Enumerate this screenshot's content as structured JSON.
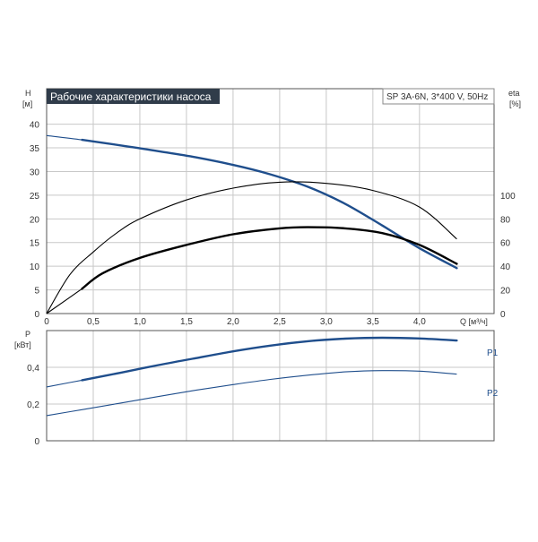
{
  "chart_title": "Рабочие характеристики насоса",
  "model_label": "SP 3A-6N, 3*400 V, 50Hz",
  "colors": {
    "blue": "#1f4e8c",
    "black": "#000000",
    "grid": "#c8c8c8",
    "frame": "#555555",
    "title_bg": "#303c4a"
  },
  "chart_data": [
    {
      "type": "line",
      "panel": "top",
      "ylabel_left": "H",
      "ylabel_left_unit": "[м]",
      "ylabel_right": "eta",
      "ylabel_right_unit": "[%]",
      "xlabel": "Q [м³/ч]",
      "x_ticks": [
        "0",
        "0,5",
        "1,0",
        "1,5",
        "2,0",
        "2,5",
        "3,0",
        "3,5",
        "4,0"
      ],
      "x_tick_values": [
        0,
        0.5,
        1.0,
        1.5,
        2.0,
        2.5,
        3.0,
        3.5,
        4.0
      ],
      "xlim": [
        0,
        4.8
      ],
      "y_left_ticks": [
        "0",
        "5",
        "10",
        "15",
        "20",
        "25",
        "30",
        "35",
        "40"
      ],
      "y_left_tick_values": [
        0,
        5,
        10,
        15,
        20,
        25,
        30,
        35,
        40
      ],
      "ylim_left": [
        0,
        47.5
      ],
      "y_right_ticks": [
        "0",
        "20",
        "40",
        "60",
        "80",
        "100"
      ],
      "y_right_tick_values": [
        0,
        20,
        40,
        60,
        80,
        100
      ],
      "ylim_right": [
        0,
        190
      ],
      "grid": true,
      "series": [
        {
          "key": "head",
          "axis": "left",
          "color": "#1f4e8c",
          "style": "thin-then-thick",
          "thick_from": 0.38,
          "x": [
            0,
            0.38,
            0.8,
            1.2,
            1.6,
            2.0,
            2.4,
            2.8,
            3.2,
            3.6,
            4.0,
            4.4
          ],
          "y": [
            37.6,
            36.7,
            35.5,
            34.3,
            33.0,
            31.4,
            29.4,
            26.8,
            23.2,
            18.6,
            13.8,
            9.6
          ]
        },
        {
          "key": "eta",
          "axis": "right",
          "color": "#000000",
          "style": "thin",
          "x": [
            0,
            0.25,
            0.5,
            0.75,
            1.0,
            1.5,
            2.0,
            2.5,
            3.0,
            3.5,
            4.0,
            4.4
          ],
          "y": [
            0,
            33,
            52,
            68,
            80,
            96,
            106,
            111,
            110,
            104,
            90,
            63
          ]
        },
        {
          "key": "eta_pump",
          "axis": "right",
          "color": "#000000",
          "style": "thin-then-thick",
          "thick_from": 0.38,
          "x": [
            0,
            0.38,
            0.6,
            1.0,
            1.5,
            2.0,
            2.5,
            2.8,
            3.2,
            3.6,
            4.0,
            4.4
          ],
          "y": [
            0,
            21,
            34,
            47,
            58,
            67,
            72,
            73,
            72,
            68,
            58,
            42
          ]
        }
      ]
    },
    {
      "type": "line",
      "panel": "bottom",
      "ylabel": "P",
      "ylabel_unit": "[кВт]",
      "y_ticks": [
        "0",
        "0,2",
        "0,4"
      ],
      "y_tick_values": [
        0,
        0.2,
        0.4
      ],
      "ylim": [
        0,
        0.6
      ],
      "xlim": [
        0,
        4.8
      ],
      "grid": true,
      "series": [
        {
          "name": "P1",
          "key": "p1",
          "color": "#1f4e8c",
          "style": "thin-then-thick",
          "thick_from": 0.38,
          "x": [
            0,
            0.38,
            0.8,
            1.2,
            1.6,
            2.0,
            2.4,
            2.8,
            3.2,
            3.6,
            4.0,
            4.4
          ],
          "y": [
            0.293,
            0.33,
            0.371,
            0.412,
            0.45,
            0.487,
            0.518,
            0.542,
            0.556,
            0.561,
            0.557,
            0.546
          ]
        },
        {
          "name": "P2",
          "key": "p2",
          "color": "#1f4e8c",
          "style": "thin",
          "x": [
            0,
            0.4,
            0.8,
            1.2,
            1.6,
            2.0,
            2.4,
            2.8,
            3.2,
            3.6,
            4.0,
            4.4
          ],
          "y": [
            0.137,
            0.171,
            0.206,
            0.241,
            0.275,
            0.306,
            0.334,
            0.357,
            0.375,
            0.382,
            0.379,
            0.363
          ]
        }
      ]
    }
  ]
}
